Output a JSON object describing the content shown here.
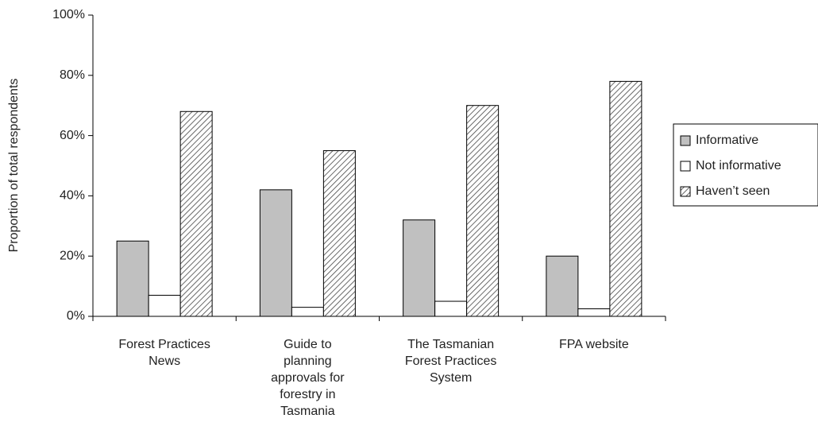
{
  "chart_data": {
    "type": "bar",
    "y_label": "Proportion of total respondents",
    "categories": [
      [
        "Forest Practices",
        "News"
      ],
      [
        "Guide to",
        "planning",
        "approvals for",
        "forestry in",
        "Tasmania"
      ],
      [
        "The Tasmanian",
        "Forest Practices",
        "System"
      ],
      [
        "FPA website"
      ]
    ],
    "series": [
      {
        "name": "Informative",
        "color": "#c0c0c0",
        "values": [
          25,
          42,
          32,
          20
        ]
      },
      {
        "name": "Not informative",
        "color": "#ffffff",
        "values": [
          7,
          3,
          5,
          2.5
        ]
      },
      {
        "name": "Haven’t seen",
        "color": "#ffffff",
        "hatch": true,
        "values": [
          68,
          55,
          70,
          78
        ]
      }
    ],
    "ylim": [
      0,
      100
    ],
    "yticks": [
      {
        "value": 0,
        "label": "0%"
      },
      {
        "value": 20,
        "label": "20%"
      },
      {
        "value": 40,
        "label": "40%"
      },
      {
        "value": 60,
        "label": "60%"
      },
      {
        "value": 80,
        "label": "80%"
      },
      {
        "value": 100,
        "label": "100%"
      }
    ],
    "legend": "right"
  }
}
